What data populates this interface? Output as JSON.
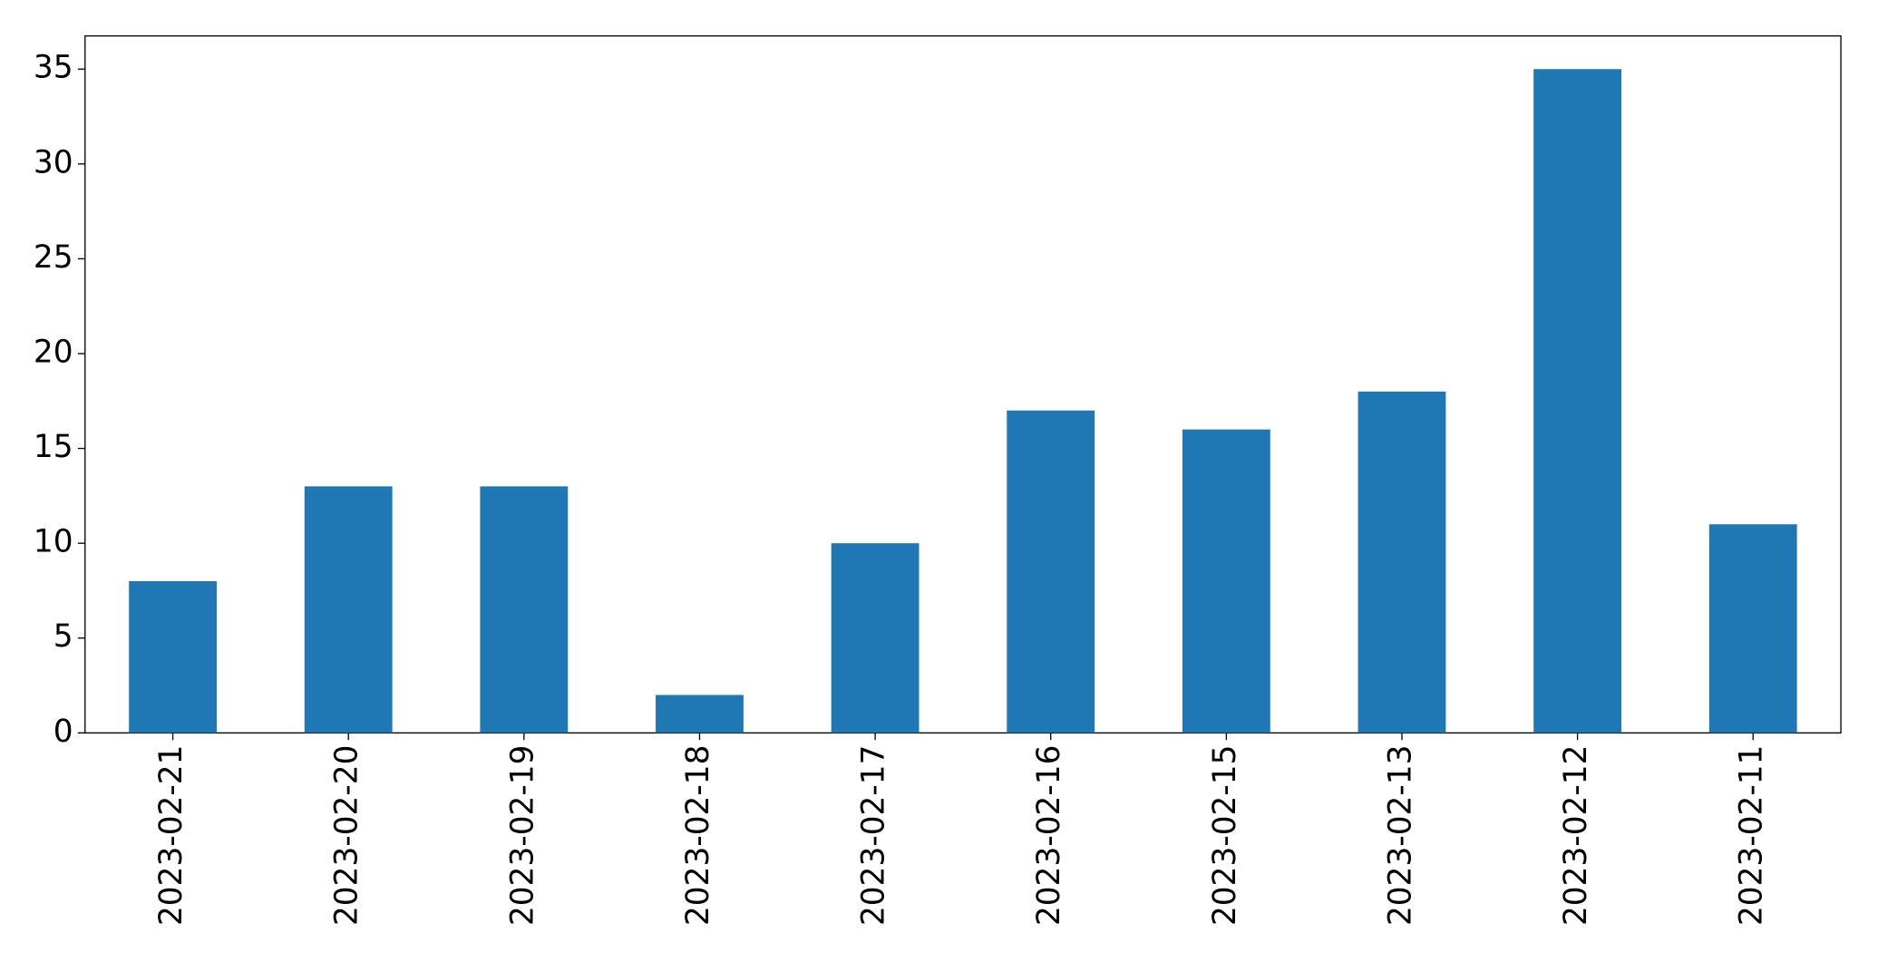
{
  "chart_data": {
    "type": "bar",
    "categories": [
      "2023-02-21",
      "2023-02-20",
      "2023-02-19",
      "2023-02-18",
      "2023-02-17",
      "2023-02-16",
      "2023-02-15",
      "2023-02-13",
      "2023-02-12",
      "2023-02-11"
    ],
    "values": [
      8,
      13,
      13,
      2,
      10,
      17,
      16,
      18,
      35,
      11
    ],
    "color": "#1f77b4",
    "ylim": [
      0,
      36.75
    ],
    "yticks": [
      0,
      5,
      10,
      15,
      20,
      25,
      30,
      35
    ],
    "grid": false
  }
}
